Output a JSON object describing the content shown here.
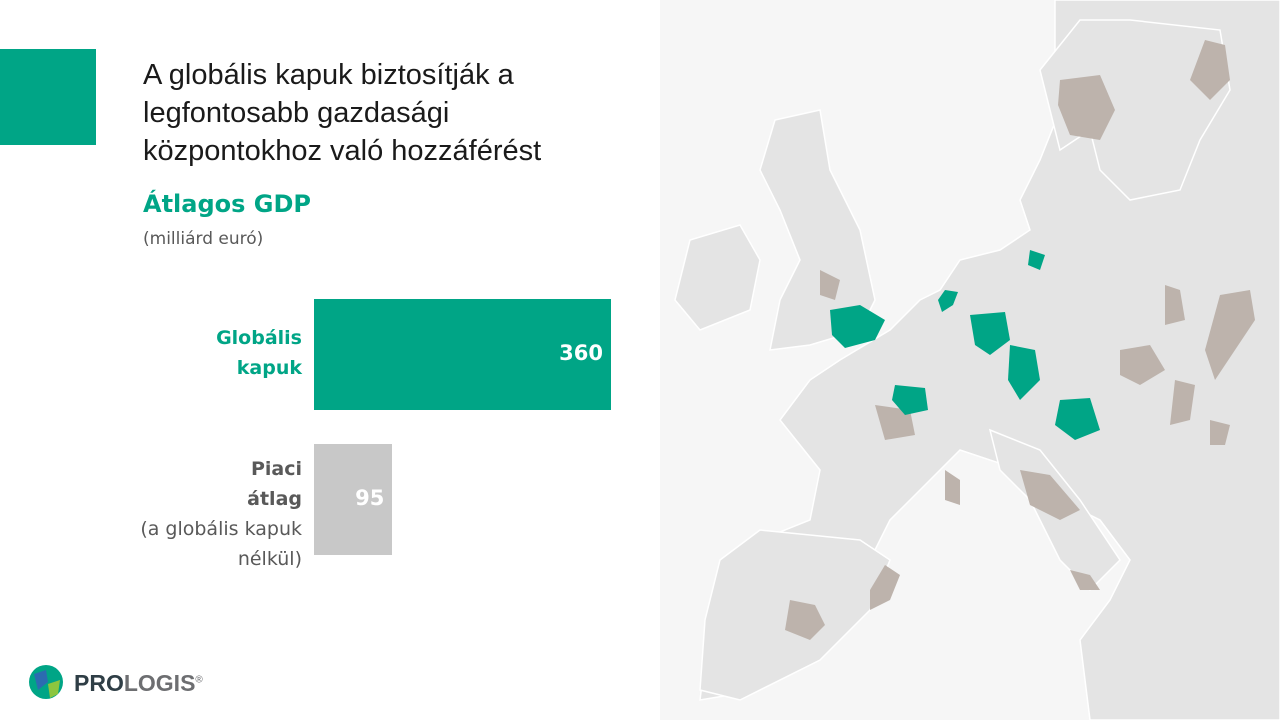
{
  "chart_data": {
    "type": "bar",
    "orientation": "horizontal",
    "title": [
      "A globális kapuk biztosítják a",
      "legfontosabb gazdasági",
      "központokhoz való hozzáférést"
    ],
    "subtitle": "Átlagos GDP",
    "unit": "(milliárd euró)",
    "categories": [
      "Globális kapuk",
      "Piaci átlag"
    ],
    "category_notes": [
      null,
      "(a globális kapuk nélkül)"
    ],
    "values": [
      360,
      95
    ],
    "colors": [
      "#00a586",
      "#c8c8c8"
    ],
    "label_colors": [
      "#00a586",
      "#595959"
    ]
  },
  "logo": {
    "pro": "PRO",
    "logis": "LOGIS",
    "mark": "®"
  }
}
